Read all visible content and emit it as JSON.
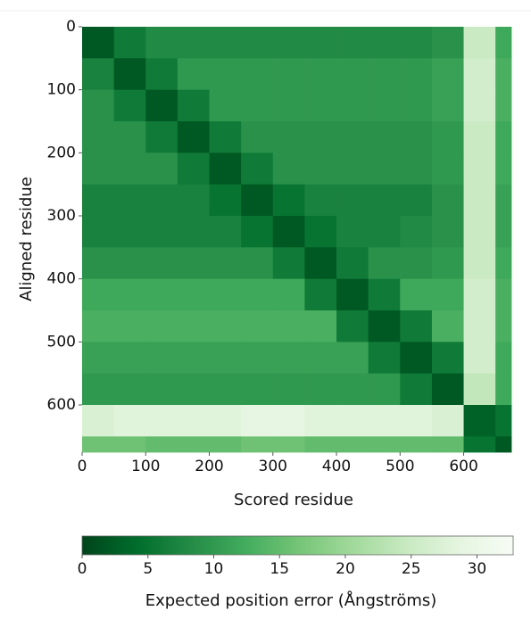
{
  "chart_data": {
    "type": "heatmap",
    "x_label": "Scored residue",
    "y_label": "Aligned residue",
    "colorbar_label": "Expected position error (Ångströms)",
    "x_bins": [
      0,
      50,
      100,
      150,
      200,
      250,
      300,
      350,
      400,
      450,
      500,
      550,
      600,
      650,
      675
    ],
    "y_bins": [
      0,
      50,
      100,
      150,
      200,
      250,
      300,
      350,
      400,
      450,
      500,
      550,
      600,
      650,
      675
    ],
    "values": [
      [
        2,
        6,
        8,
        8,
        8,
        8,
        8,
        8,
        8,
        8,
        8,
        9,
        25,
        12
      ],
      [
        7,
        2,
        6,
        10,
        10,
        10,
        10,
        10,
        10,
        10,
        10,
        11,
        26,
        13
      ],
      [
        9,
        6,
        2,
        6,
        10,
        10,
        10,
        10,
        10,
        10,
        10,
        11,
        26,
        13
      ],
      [
        9,
        9,
        6,
        2,
        6,
        9,
        9,
        9,
        9,
        9,
        9,
        10,
        25,
        12
      ],
      [
        9,
        9,
        9,
        6,
        2,
        6,
        9,
        9,
        9,
        9,
        9,
        10,
        25,
        12
      ],
      [
        7,
        7,
        7,
        7,
        5,
        2,
        5,
        7,
        7,
        7,
        7,
        9,
        25,
        11
      ],
      [
        7,
        7,
        7,
        7,
        7,
        5,
        2,
        5,
        7,
        7,
        8,
        9,
        25,
        11
      ],
      [
        9,
        9,
        9,
        9,
        9,
        9,
        6,
        2,
        6,
        9,
        9,
        10,
        25,
        12
      ],
      [
        12,
        12,
        12,
        12,
        12,
        12,
        12,
        6,
        2,
        6,
        12,
        12,
        26,
        13
      ],
      [
        13,
        13,
        13,
        13,
        13,
        13,
        13,
        13,
        6,
        2,
        6,
        13,
        26,
        13
      ],
      [
        11,
        11,
        11,
        11,
        11,
        11,
        11,
        11,
        11,
        6,
        2,
        6,
        26,
        12
      ],
      [
        10,
        10,
        10,
        10,
        10,
        10,
        10,
        10,
        10,
        10,
        6,
        2,
        24,
        12
      ],
      [
        27,
        28,
        28,
        28,
        28,
        29,
        29,
        28,
        28,
        28,
        28,
        27,
        3,
        5
      ],
      [
        16,
        16,
        15,
        15,
        15,
        16,
        16,
        15,
        15,
        15,
        15,
        15,
        5,
        2
      ]
    ],
    "xlim": [
      0,
      675
    ],
    "ylim": [
      0,
      675
    ],
    "xticks": [
      0,
      100,
      200,
      300,
      400,
      500,
      600
    ],
    "yticks": [
      0,
      100,
      200,
      300,
      400,
      500,
      600
    ],
    "clim": [
      0,
      32.75
    ],
    "cticks": [
      0,
      5,
      10,
      15,
      20,
      25,
      30
    ],
    "colorscale": [
      "#00441b",
      "#006d2c",
      "#238b45",
      "#41ab5d",
      "#74c476",
      "#a1d99b",
      "#c7e9c0",
      "#e5f5e0",
      "#f7fcf5"
    ]
  }
}
